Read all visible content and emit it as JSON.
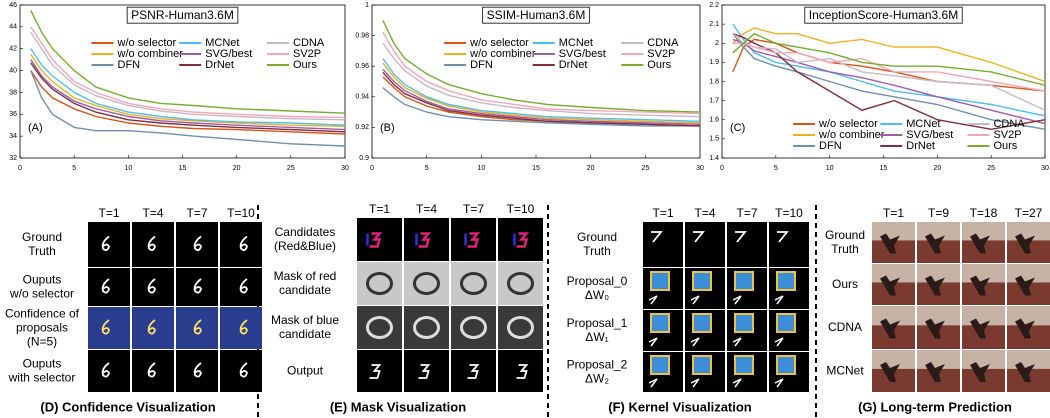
{
  "chart_data": [
    {
      "type": "line",
      "title": "PSNR-Human3.6M",
      "annotation": "(A)",
      "legend": "upper center",
      "x": [
        1,
        2,
        3,
        5,
        7,
        10,
        13,
        16,
        20,
        25,
        30
      ],
      "xlim": [
        0,
        30
      ],
      "xticks": [
        0,
        5,
        10,
        15,
        20,
        25,
        30
      ],
      "ylim": [
        32,
        46
      ],
      "yticks": [
        32,
        34,
        36,
        38,
        40,
        42,
        44,
        46
      ],
      "series": [
        {
          "name": "w/o selector",
          "color": "#d95319",
          "values": [
            40,
            38.5,
            37.5,
            36.5,
            35.8,
            35.2,
            34.9,
            34.7,
            34.6,
            34.4,
            34.2
          ]
        },
        {
          "name": "w/o combiner",
          "color": "#edb120",
          "values": [
            41.5,
            40,
            39,
            37.5,
            36.8,
            36,
            35.6,
            35.4,
            35.2,
            35,
            34.9
          ]
        },
        {
          "name": "DFN",
          "color": "#6f8fb0",
          "values": [
            40,
            37.5,
            36,
            34.8,
            34.5,
            34.5,
            34.3,
            34,
            33.7,
            33.3,
            33.1
          ]
        },
        {
          "name": "MCNet",
          "color": "#4dbeee",
          "values": [
            42,
            40.5,
            39.5,
            38,
            37,
            36.2,
            35.8,
            35.5,
            35.3,
            35.2,
            35
          ]
        },
        {
          "name": "SVG/best",
          "color": "#a05ca6",
          "values": [
            41,
            39.5,
            38.5,
            37.2,
            36.5,
            35.8,
            35.4,
            35.2,
            35,
            34.8,
            34.6
          ]
        },
        {
          "name": "DrNet",
          "color": "#7e2f3e",
          "values": [
            40.7,
            39.3,
            38.3,
            37,
            36.2,
            35.5,
            35.2,
            35,
            34.8,
            34.6,
            34.4
          ]
        },
        {
          "name": "CDNA",
          "color": "#c9b8c4",
          "values": [
            43.5,
            42,
            40.5,
            38.7,
            37.7,
            36.8,
            36.3,
            36,
            35.8,
            35.6,
            35.5
          ]
        },
        {
          "name": "SV2P",
          "color": "#f2a7b8",
          "values": [
            44,
            42.5,
            41,
            39,
            38,
            37,
            36.5,
            36.2,
            36,
            35.8,
            35.7
          ]
        },
        {
          "name": "Ours",
          "color": "#77ac30",
          "values": [
            45.5,
            43.5,
            42,
            40,
            38.5,
            37.5,
            37,
            36.8,
            36.5,
            36.3,
            36.1
          ]
        }
      ]
    },
    {
      "type": "line",
      "title": "SSIM-Human3.6M",
      "annotation": "(B)",
      "legend": "upper center",
      "x": [
        1,
        2,
        3,
        5,
        7,
        10,
        13,
        16,
        20,
        25,
        30
      ],
      "xlim": [
        0,
        30
      ],
      "xticks": [
        0,
        5,
        10,
        15,
        20,
        25,
        30
      ],
      "ylim": [
        0.9,
        1
      ],
      "yticks": [
        0.9,
        0.92,
        0.94,
        0.96,
        0.98,
        1
      ],
      "series": [
        {
          "name": "w/o selector",
          "color": "#d95319",
          "values": [
            0.953,
            0.946,
            0.94,
            0.934,
            0.93,
            0.927,
            0.925,
            0.924,
            0.923,
            0.922,
            0.921
          ]
        },
        {
          "name": "w/o combiner",
          "color": "#edb120",
          "values": [
            0.962,
            0.953,
            0.946,
            0.939,
            0.934,
            0.93,
            0.928,
            0.926,
            0.925,
            0.924,
            0.923
          ]
        },
        {
          "name": "DFN",
          "color": "#6f8fb0",
          "values": [
            0.946,
            0.94,
            0.935,
            0.93,
            0.927,
            0.925,
            0.924,
            0.923,
            0.922,
            0.921,
            0.921
          ]
        },
        {
          "name": "MCNet",
          "color": "#4dbeee",
          "values": [
            0.965,
            0.955,
            0.948,
            0.94,
            0.935,
            0.931,
            0.929,
            0.927,
            0.926,
            0.925,
            0.924
          ]
        },
        {
          "name": "SVG/best",
          "color": "#a05ca6",
          "values": [
            0.958,
            0.95,
            0.944,
            0.937,
            0.932,
            0.929,
            0.927,
            0.925,
            0.924,
            0.923,
            0.922
          ]
        },
        {
          "name": "DrNet",
          "color": "#7e2f3e",
          "values": [
            0.956,
            0.948,
            0.942,
            0.936,
            0.931,
            0.928,
            0.926,
            0.924,
            0.923,
            0.922,
            0.921
          ]
        },
        {
          "name": "CDNA",
          "color": "#c9b8c4",
          "values": [
            0.975,
            0.965,
            0.957,
            0.947,
            0.941,
            0.936,
            0.933,
            0.931,
            0.929,
            0.928,
            0.927
          ]
        },
        {
          "name": "SV2P",
          "color": "#f2a7b8",
          "values": [
            0.982,
            0.97,
            0.96,
            0.95,
            0.944,
            0.938,
            0.935,
            0.932,
            0.931,
            0.93,
            0.929
          ]
        },
        {
          "name": "Ours",
          "color": "#77ac30",
          "values": [
            0.99,
            0.975,
            0.965,
            0.955,
            0.948,
            0.942,
            0.938,
            0.935,
            0.933,
            0.931,
            0.93
          ]
        }
      ]
    },
    {
      "type": "line",
      "title": "InceptionScore-Human3.6M",
      "annotation": "(C)",
      "legend": "lower center",
      "x": [
        1,
        2,
        3,
        5,
        7,
        10,
        13,
        16,
        20,
        25,
        30
      ],
      "xlim": [
        0,
        30
      ],
      "xticks": [
        0,
        5,
        10,
        15,
        20,
        25,
        30
      ],
      "ylim": [
        1.4,
        2.2
      ],
      "yticks": [
        1.4,
        1.5,
        1.6,
        1.7,
        1.8,
        1.9,
        2,
        2.1,
        2.2
      ],
      "series": [
        {
          "name": "w/o selector",
          "color": "#d95319",
          "values": [
            1.85,
            1.98,
            2.02,
            2,
            1.95,
            1.9,
            1.88,
            1.85,
            1.8,
            1.78,
            1.75
          ]
        },
        {
          "name": "w/o combiner",
          "color": "#edb120",
          "values": [
            2,
            2.05,
            2.08,
            2.05,
            2.05,
            2,
            2.02,
            1.98,
            1.98,
            1.9,
            1.8
          ]
        },
        {
          "name": "DFN",
          "color": "#6f8fb0",
          "values": [
            2.05,
            1.98,
            1.92,
            1.88,
            1.85,
            1.8,
            1.75,
            1.72,
            1.68,
            1.6,
            1.55
          ]
        },
        {
          "name": "MCNet",
          "color": "#4dbeee",
          "values": [
            2.1,
            2.02,
            1.95,
            1.9,
            1.88,
            1.85,
            1.8,
            1.75,
            1.72,
            1.68,
            1.62
          ]
        },
        {
          "name": "SVG/best",
          "color": "#a05ca6",
          "values": [
            2.02,
            2,
            1.96,
            1.93,
            1.9,
            1.85,
            1.82,
            1.78,
            1.72,
            1.65,
            1.58
          ]
        },
        {
          "name": "DrNet",
          "color": "#7e2f3e",
          "values": [
            2.05,
            2.03,
            2,
            1.95,
            1.85,
            1.75,
            1.65,
            1.7,
            1.6,
            1.55,
            1.6
          ]
        },
        {
          "name": "CDNA",
          "color": "#c9b8c4",
          "values": [
            2.05,
            2,
            1.98,
            1.97,
            1.9,
            1.92,
            1.85,
            1.83,
            1.8,
            1.78,
            1.65
          ]
        },
        {
          "name": "SV2P",
          "color": "#f2a7b8",
          "values": [
            2,
            2,
            1.98,
            1.95,
            1.95,
            1.9,
            1.92,
            1.85,
            1.85,
            1.8,
            1.75
          ]
        },
        {
          "name": "Ours",
          "color": "#77ac30",
          "values": [
            1.95,
            2,
            2.05,
            2,
            1.98,
            1.95,
            1.9,
            1.88,
            1.88,
            1.85,
            1.78
          ]
        }
      ]
    }
  ],
  "panels": [
    {
      "caption": "(D) Confidence Visualization",
      "columns": [
        "T=1",
        "T=4",
        "T=7",
        "T=10"
      ],
      "rows": [
        [
          "Ground",
          "Truth"
        ],
        [
          "Ouputs",
          "w/o selector"
        ],
        [
          "Confidence of",
          "proposals",
          "(N=5)"
        ],
        [
          "Ouputs",
          "with selector"
        ]
      ]
    },
    {
      "caption": "(E) Mask Visualization",
      "columns": [
        "T=1",
        "T=4",
        "T=7",
        "T=10"
      ],
      "rows": [
        [
          "Candidates",
          "(Red&Blue)"
        ],
        [
          "Mask of red",
          "candidate"
        ],
        [
          "Mask of blue",
          "candidate"
        ],
        [
          "Output"
        ]
      ]
    },
    {
      "caption": "(F) Kernel Visualization",
      "columns": [
        "T=1",
        "T=4",
        "T=7",
        "T=10"
      ],
      "rows": [
        [
          "Ground",
          "Truth"
        ],
        [
          "Proposal_0",
          "ΔW₀"
        ],
        [
          "Proposal_1",
          "ΔW₁"
        ],
        [
          "Proposal_2",
          "ΔW₂"
        ]
      ]
    },
    {
      "caption": "(G) Long-term Prediction",
      "columns": [
        "T=1",
        "T=9",
        "T=18",
        "T=27"
      ],
      "rows": [
        [
          "Ground",
          "Truth"
        ],
        [
          "Ours"
        ],
        [
          "CDNA"
        ],
        [
          "MCNet"
        ]
      ]
    }
  ]
}
